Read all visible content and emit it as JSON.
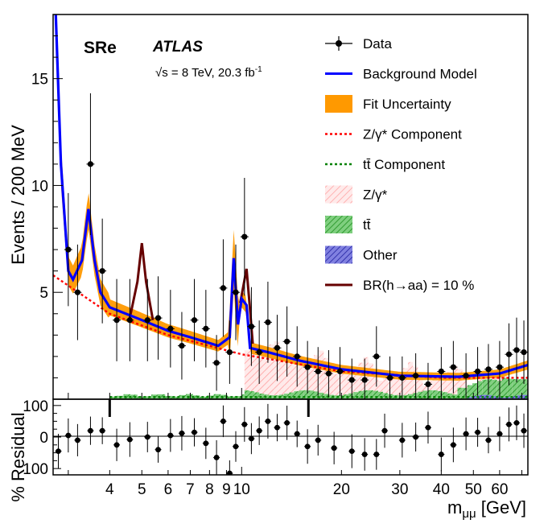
{
  "chart_data": [
    {
      "type": "line",
      "region_label": "SRe",
      "experiment": "ATLAS",
      "energy_lumi": "√s = 8 TeV, 20.3 fb",
      "energy_lumi_sup": "-1",
      "ylabel": "Events / 200 MeV",
      "x_scale": "log",
      "xlim": [
        2.7,
        73
      ],
      "ylim": [
        0,
        18
      ],
      "y_ticks": [
        5,
        10,
        15
      ],
      "y_tick_labels": [
        "5",
        "10",
        "15"
      ],
      "legend_position": "top-right",
      "legend": [
        {
          "label": "Data",
          "style": "marker"
        },
        {
          "label": "Background Model",
          "style": "line",
          "color": "#0000ff"
        },
        {
          "label": "Fit Uncertainty",
          "style": "fill",
          "color": "#ff9900"
        },
        {
          "label": "Z/γ* Component",
          "style": "dashed",
          "color": "#ff0000"
        },
        {
          "label": "tt̄ Component",
          "style": "dashed",
          "color": "#008000"
        },
        {
          "label": "Z/γ*",
          "style": "hatch",
          "color": "#ff9999"
        },
        {
          "label": "tt̄",
          "style": "hatch",
          "color": "#33aa33"
        },
        {
          "label": "Other",
          "style": "hatch",
          "color": "#3333bb"
        },
        {
          "label": "BR(h→aa) = 10 %",
          "style": "line",
          "color": "#660000"
        }
      ],
      "series": [
        {
          "name": "Data",
          "color": "#000000",
          "points": [
            {
              "x": 3.0,
              "y": 7.0
            },
            {
              "x": 3.2,
              "y": 5.0
            },
            {
              "x": 3.5,
              "y": 11.0
            },
            {
              "x": 3.8,
              "y": 6.0
            },
            {
              "x": 4.2,
              "y": 3.7
            },
            {
              "x": 4.6,
              "y": 3.7
            },
            {
              "x": 5.2,
              "y": 3.7
            },
            {
              "x": 5.6,
              "y": 3.8
            },
            {
              "x": 6.1,
              "y": 3.3
            },
            {
              "x": 6.6,
              "y": 2.5
            },
            {
              "x": 7.2,
              "y": 3.7
            },
            {
              "x": 7.8,
              "y": 3.3
            },
            {
              "x": 8.4,
              "y": 1.7
            },
            {
              "x": 8.8,
              "y": 5.2
            },
            {
              "x": 9.2,
              "y": 2.2
            },
            {
              "x": 9.6,
              "y": 5.0
            },
            {
              "x": 10.2,
              "y": 7.6
            },
            {
              "x": 10.7,
              "y": 3.4
            },
            {
              "x": 11.3,
              "y": 2.2
            },
            {
              "x": 12.0,
              "y": 3.6
            },
            {
              "x": 12.8,
              "y": 2.4
            },
            {
              "x": 13.7,
              "y": 2.7
            },
            {
              "x": 14.7,
              "y": 2.0
            },
            {
              "x": 15.8,
              "y": 1.5
            },
            {
              "x": 17.0,
              "y": 1.3
            },
            {
              "x": 18.3,
              "y": 1.2
            },
            {
              "x": 19.8,
              "y": 1.3
            },
            {
              "x": 21.5,
              "y": 0.9
            },
            {
              "x": 23.5,
              "y": 0.9
            },
            {
              "x": 25.5,
              "y": 2.0
            },
            {
              "x": 28.0,
              "y": 1.0
            },
            {
              "x": 30.5,
              "y": 1.0
            },
            {
              "x": 33.5,
              "y": 1.1
            },
            {
              "x": 36.5,
              "y": 0.7
            },
            {
              "x": 40.0,
              "y": 1.3
            },
            {
              "x": 43.5,
              "y": 1.5
            },
            {
              "x": 47.5,
              "y": 1.1
            },
            {
              "x": 51.5,
              "y": 1.3
            },
            {
              "x": 55.5,
              "y": 1.4
            },
            {
              "x": 60.0,
              "y": 1.5
            },
            {
              "x": 64.0,
              "y": 2.1
            },
            {
              "x": 67.5,
              "y": 2.3
            },
            {
              "x": 71.0,
              "y": 2.2
            }
          ]
        },
        {
          "name": "Background Model",
          "color": "#0000ff",
          "points": [
            {
              "x": 2.75,
              "y": 18
            },
            {
              "x": 2.85,
              "y": 11
            },
            {
              "x": 3.0,
              "y": 6.0
            },
            {
              "x": 3.1,
              "y": 5.6
            },
            {
              "x": 3.3,
              "y": 6.5
            },
            {
              "x": 3.45,
              "y": 8.9
            },
            {
              "x": 3.6,
              "y": 6.5
            },
            {
              "x": 3.75,
              "y": 5.0
            },
            {
              "x": 4.0,
              "y": 4.3
            },
            {
              "x": 5.0,
              "y": 3.7
            },
            {
              "x": 6.0,
              "y": 3.2
            },
            {
              "x": 7.0,
              "y": 2.9
            },
            {
              "x": 8.5,
              "y": 2.5
            },
            {
              "x": 9.2,
              "y": 2.9
            },
            {
              "x": 9.46,
              "y": 6.6
            },
            {
              "x": 9.75,
              "y": 3.5
            },
            {
              "x": 10.0,
              "y": 4.7
            },
            {
              "x": 10.35,
              "y": 4.4
            },
            {
              "x": 10.6,
              "y": 2.4
            },
            {
              "x": 12.0,
              "y": 2.2
            },
            {
              "x": 15.0,
              "y": 1.8
            },
            {
              "x": 20.0,
              "y": 1.4
            },
            {
              "x": 30.0,
              "y": 1.1
            },
            {
              "x": 45.0,
              "y": 1.05
            },
            {
              "x": 60.0,
              "y": 1.2
            },
            {
              "x": 73.0,
              "y": 1.6
            }
          ]
        },
        {
          "name": "BR(h→aa) = 10 %",
          "color": "#660000",
          "points": [
            {
              "x": 4.6,
              "y": 3.8
            },
            {
              "x": 4.85,
              "y": 5.5
            },
            {
              "x": 5.0,
              "y": 7.3
            },
            {
              "x": 5.15,
              "y": 5.5
            },
            {
              "x": 5.4,
              "y": 3.7
            },
            {
              "x": 9.9,
              "y": 4.5
            },
            {
              "x": 10.35,
              "y": 6.1
            },
            {
              "x": 10.6,
              "y": 4.2
            },
            {
              "x": 10.8,
              "y": 2.6
            }
          ]
        },
        {
          "name": "Z/γ* Component",
          "color": "#ff0000",
          "points": [
            {
              "x": 2.7,
              "y": 5.8
            },
            {
              "x": 4.0,
              "y": 4.0
            },
            {
              "x": 6.0,
              "y": 3.0
            },
            {
              "x": 10.0,
              "y": 2.1
            },
            {
              "x": 20.0,
              "y": 1.3
            },
            {
              "x": 40.0,
              "y": 1.0
            },
            {
              "x": 73.0,
              "y": 1.0
            }
          ]
        }
      ]
    },
    {
      "type": "scatter",
      "ylabel": "% Residual",
      "xlabel": "m",
      "xlabel_sub": "μμ",
      "xlabel_unit": " [GeV]",
      "ylim": [
        -120,
        120
      ],
      "y_ticks": [
        100,
        0,
        -100
      ],
      "y_tick_labels": [
        "100",
        "0",
        "100"
      ],
      "x_ticks": [
        4,
        5,
        6,
        7,
        8,
        9,
        10,
        20,
        30,
        40,
        50,
        60
      ],
      "x_tick_labels": [
        "4",
        "5",
        "6",
        "7",
        "8",
        "9",
        "10",
        "20",
        "30",
        "40",
        "50",
        "60"
      ],
      "points": [
        {
          "x": 2.8,
          "y": -45
        },
        {
          "x": 3.0,
          "y": 5
        },
        {
          "x": 3.2,
          "y": -10
        },
        {
          "x": 3.5,
          "y": 20
        },
        {
          "x": 3.8,
          "y": 20
        },
        {
          "x": 4.2,
          "y": -25
        },
        {
          "x": 4.6,
          "y": -8
        },
        {
          "x": 5.2,
          "y": 0
        },
        {
          "x": 5.6,
          "y": -40
        },
        {
          "x": 6.1,
          "y": 5
        },
        {
          "x": 6.6,
          "y": 12
        },
        {
          "x": 7.2,
          "y": 15
        },
        {
          "x": 7.8,
          "y": -20
        },
        {
          "x": 8.4,
          "y": -65
        },
        {
          "x": 8.8,
          "y": 50
        },
        {
          "x": 9.2,
          "y": -115
        },
        {
          "x": 9.6,
          "y": -30
        },
        {
          "x": 10.2,
          "y": 40
        },
        {
          "x": 10.7,
          "y": -5
        },
        {
          "x": 11.3,
          "y": 20
        },
        {
          "x": 12.0,
          "y": 50
        },
        {
          "x": 12.8,
          "y": 30
        },
        {
          "x": 13.7,
          "y": 45
        },
        {
          "x": 14.7,
          "y": 10
        },
        {
          "x": 15.8,
          "y": -30
        },
        {
          "x": 17.0,
          "y": -10
        },
        {
          "x": 19.0,
          "y": -35
        },
        {
          "x": 21.5,
          "y": -45
        },
        {
          "x": 23.5,
          "y": -55
        },
        {
          "x": 25.5,
          "y": -55
        },
        {
          "x": 27.0,
          "y": 20
        },
        {
          "x": 30.5,
          "y": -10
        },
        {
          "x": 33.5,
          "y": 0
        },
        {
          "x": 36.5,
          "y": 30
        },
        {
          "x": 40.0,
          "y": -55
        },
        {
          "x": 43.5,
          "y": -25
        },
        {
          "x": 47.5,
          "y": 10
        },
        {
          "x": 51.5,
          "y": 15
        },
        {
          "x": 55.5,
          "y": -10
        },
        {
          "x": 60.0,
          "y": 10
        },
        {
          "x": 64.0,
          "y": 40
        },
        {
          "x": 67.5,
          "y": 45
        },
        {
          "x": 71.0,
          "y": 20
        }
      ]
    }
  ]
}
